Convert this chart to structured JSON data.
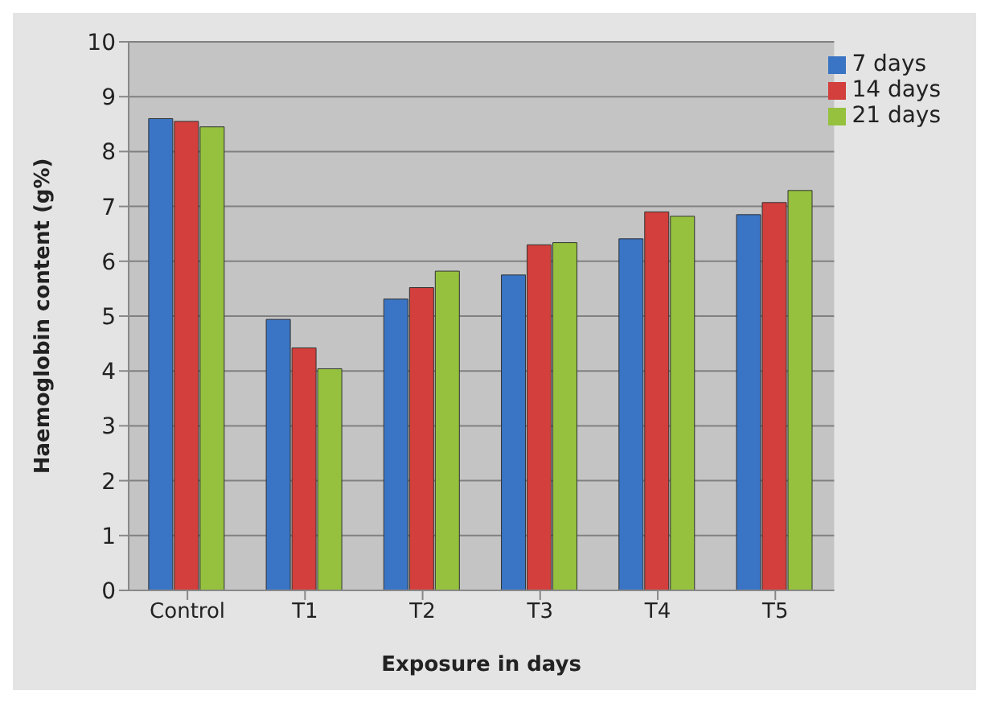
{
  "chart_data": {
    "type": "bar",
    "xlabel": "Exposure in days",
    "ylabel": "Haemoglobin content (g%)",
    "categories": [
      "Control",
      "T1",
      "T2",
      "T3",
      "T4",
      "T5"
    ],
    "series": [
      {
        "name": "7 days",
        "color": "#3a74c4",
        "values": [
          8.6,
          4.94,
          5.31,
          5.75,
          6.41,
          6.85
        ]
      },
      {
        "name": "14 days",
        "color": "#d23f3c",
        "values": [
          8.55,
          4.42,
          5.52,
          6.3,
          6.9,
          7.07
        ]
      },
      {
        "name": "21 days",
        "color": "#95c13e",
        "values": [
          8.45,
          4.04,
          5.82,
          6.34,
          6.82,
          7.29
        ]
      }
    ],
    "ylim": [
      0,
      10
    ],
    "yticks": [
      0,
      1,
      2,
      3,
      4,
      5,
      6,
      7,
      8,
      9,
      10
    ],
    "grid": "y",
    "legend": "top right"
  }
}
